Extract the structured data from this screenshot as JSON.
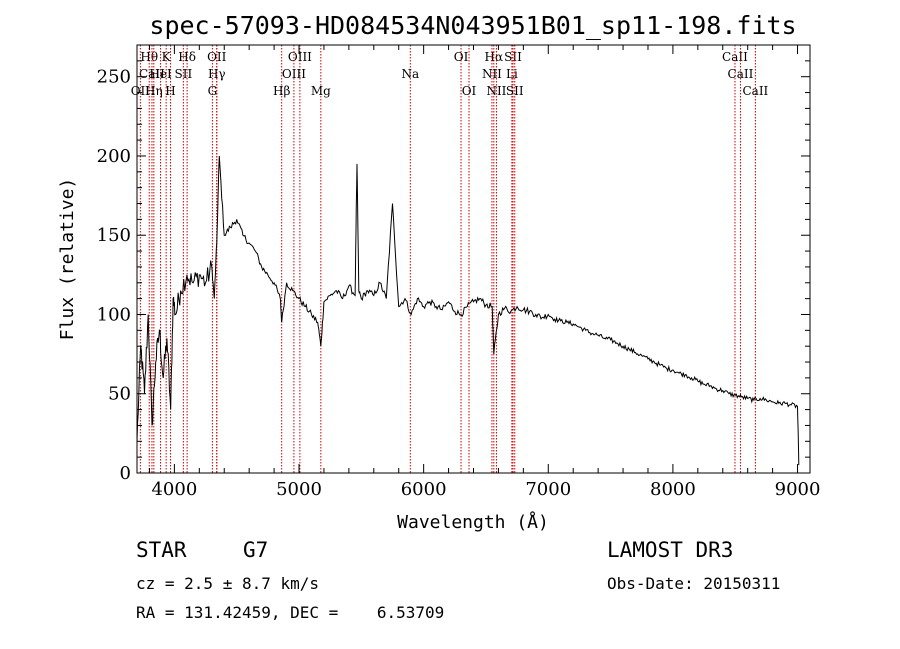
{
  "chart_data": {
    "type": "line",
    "title": "spec-57093-HD084534N043951B01_sp11-198.fits",
    "xlabel": "Wavelength (Å)",
    "ylabel": "Flux (relative)",
    "xlim": [
      3700,
      9100
    ],
    "ylim": [
      0,
      270
    ],
    "xticks": [
      4000,
      5000,
      6000,
      7000,
      8000,
      9000
    ],
    "yticks": [
      0,
      50,
      100,
      150,
      200,
      250
    ],
    "grid": false,
    "series": [
      {
        "name": "flux",
        "x": [
          3700,
          3730,
          3760,
          3790,
          3820,
          3850,
          3880,
          3910,
          3940,
          3970,
          3990,
          4010,
          4050,
          4100,
          4150,
          4200,
          4250,
          4300,
          4320,
          4340,
          4360,
          4400,
          4450,
          4500,
          4550,
          4600,
          4650,
          4700,
          4750,
          4800,
          4850,
          4861,
          4900,
          4950,
          5000,
          5050,
          5100,
          5150,
          5175,
          5200,
          5250,
          5300,
          5350,
          5400,
          5450,
          5465,
          5480,
          5500,
          5550,
          5600,
          5650,
          5700,
          5750,
          5800,
          5850,
          5900,
          5950,
          6000,
          6050,
          6100,
          6150,
          6200,
          6250,
          6300,
          6350,
          6400,
          6450,
          6500,
          6550,
          6563,
          6600,
          6650,
          6700,
          6750,
          6800,
          6850,
          6900,
          6950,
          7000,
          7050,
          7100,
          7150,
          7200,
          7250,
          7300,
          7350,
          7400,
          7450,
          7500,
          7550,
          7600,
          7650,
          7700,
          7750,
          7800,
          7850,
          7900,
          7950,
          8000,
          8050,
          8100,
          8150,
          8200,
          8250,
          8300,
          8350,
          8400,
          8450,
          8500,
          8550,
          8600,
          8650,
          8700,
          8750,
          8800,
          8850,
          8900,
          8950,
          9000,
          9010
        ],
        "y": [
          20,
          80,
          50,
          100,
          30,
          70,
          90,
          60,
          85,
          40,
          110,
          100,
          115,
          125,
          120,
          125,
          120,
          130,
          110,
          145,
          200,
          150,
          155,
          160,
          150,
          145,
          140,
          130,
          125,
          120,
          110,
          95,
          120,
          115,
          110,
          105,
          100,
          95,
          80,
          108,
          112,
          115,
          110,
          118,
          112,
          195,
          115,
          110,
          115,
          112,
          120,
          110,
          170,
          105,
          110,
          100,
          110,
          105,
          108,
          105,
          103,
          108,
          102,
          100,
          105,
          108,
          110,
          106,
          105,
          75,
          100,
          104,
          102,
          105,
          103,
          102,
          100,
          98,
          100,
          97,
          96,
          95,
          94,
          92,
          90,
          88,
          87,
          85,
          84,
          82,
          80,
          78,
          76,
          74,
          72,
          70,
          68,
          66,
          65,
          63,
          62,
          60,
          58,
          56,
          55,
          53,
          52,
          50,
          49,
          48,
          47,
          46,
          47,
          46,
          45,
          44,
          44,
          43,
          42,
          5
        ]
      }
    ],
    "spectral_lines": [
      {
        "label": "Hθ",
        "x": 3798,
        "row": 0
      },
      {
        "label": "CaII",
        "x": 3820,
        "row": 1
      },
      {
        "label": "OII",
        "x": 3727,
        "row": 2
      },
      {
        "label": "Hη",
        "x": 3835,
        "row": 2
      },
      {
        "label": "K",
        "x": 3934,
        "row": 0
      },
      {
        "label": "HeI",
        "x": 3889,
        "row": 1
      },
      {
        "label": "H",
        "x": 3969,
        "row": 2
      },
      {
        "label": "Hδ",
        "x": 4102,
        "row": 0
      },
      {
        "label": "SII",
        "x": 4072,
        "row": 1
      },
      {
        "label": "OII",
        "x": 4340,
        "row": 0
      },
      {
        "label": "Hγ",
        "x": 4340,
        "row": 1
      },
      {
        "label": "G",
        "x": 4305,
        "row": 2
      },
      {
        "label": "Hβ",
        "x": 4861,
        "row": 2
      },
      {
        "label": "OIII",
        "x": 5007,
        "row": 0
      },
      {
        "label": "OIII",
        "x": 4959,
        "row": 1
      },
      {
        "label": "Mg",
        "x": 5175,
        "row": 2
      },
      {
        "label": "Na",
        "x": 5893,
        "row": 1
      },
      {
        "label": "OI",
        "x": 6300,
        "row": 0
      },
      {
        "label": "OI",
        "x": 6364,
        "row": 2
      },
      {
        "label": "Hα",
        "x": 6563,
        "row": 0
      },
      {
        "label": "NII",
        "x": 6548,
        "row": 1
      },
      {
        "label": "NII",
        "x": 6584,
        "row": 2
      },
      {
        "label": "SII",
        "x": 6717,
        "row": 0
      },
      {
        "label": "Li",
        "x": 6708,
        "row": 1
      },
      {
        "label": "SII",
        "x": 6731,
        "row": 2
      },
      {
        "label": "CaII",
        "x": 8498,
        "row": 0
      },
      {
        "label": "CaII",
        "x": 8542,
        "row": 1
      },
      {
        "label": "CaII",
        "x": 8662,
        "row": 2
      }
    ],
    "line_color": "#000000",
    "marker_color": "#cc0000"
  },
  "info": {
    "object_type": "STAR",
    "subclass": "G7",
    "survey": "LAMOST DR3",
    "redshift": "cz = 2.5 ± 8.7 km/s",
    "obs_date": "Obs-Date: 20150311",
    "coords": "RA = 131.42459, DEC =    6.53709"
  }
}
